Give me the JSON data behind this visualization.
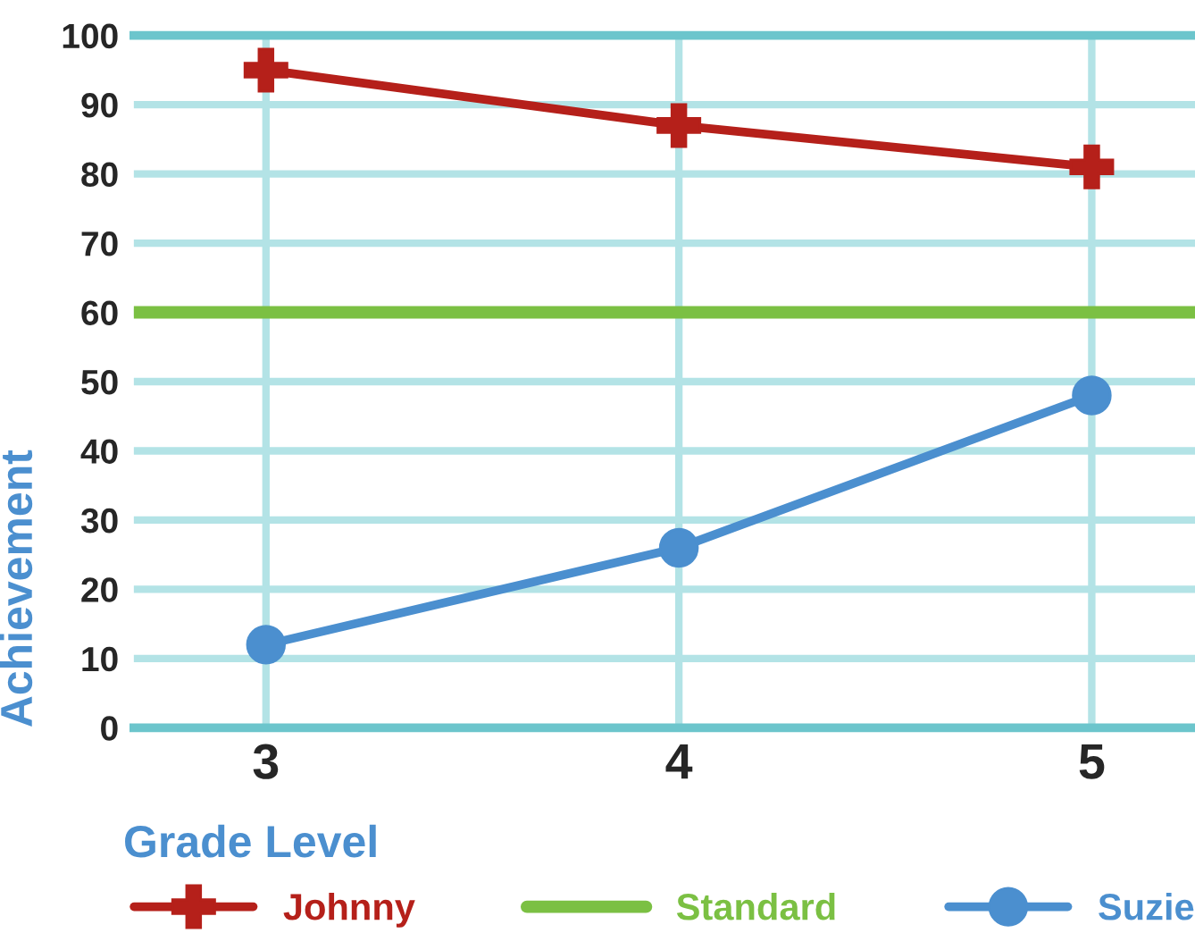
{
  "chart_data": {
    "type": "line",
    "xlabel": "Grade Level",
    "ylabel": "Achievement",
    "categories": [
      "3",
      "4",
      "5"
    ],
    "series": [
      {
        "name": "Johnny",
        "color": "#b5201a",
        "marker": "cross",
        "values": [
          95,
          87,
          81
        ]
      },
      {
        "name": "Suzie",
        "color": "#4b8fcf",
        "marker": "circle",
        "values": [
          12,
          26,
          48
        ]
      }
    ],
    "ref_lines": [
      {
        "axis": "y",
        "value": 60,
        "label": "Standard",
        "color": "#7bc043"
      }
    ],
    "ylim": [
      0,
      100
    ],
    "yticks": [
      0,
      10,
      20,
      30,
      40,
      50,
      60,
      70,
      80,
      90,
      100
    ],
    "grid": true,
    "legend": "bottom",
    "line_style": "solid"
  }
}
